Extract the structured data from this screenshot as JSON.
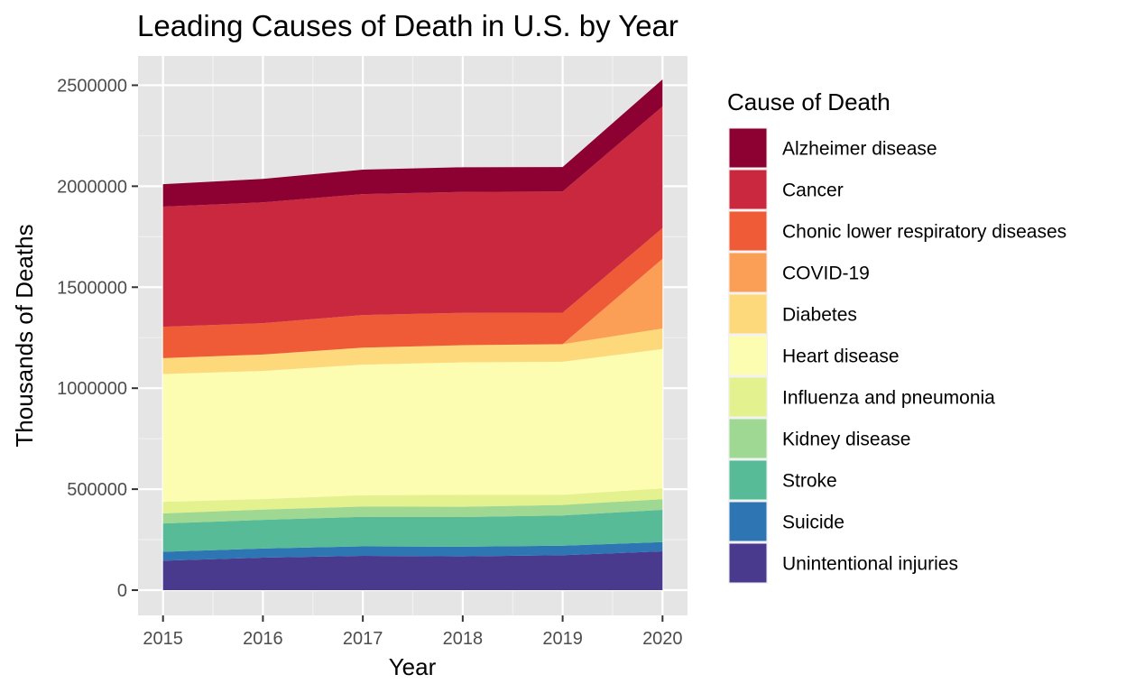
{
  "chart_data": {
    "type": "area",
    "stacked": true,
    "title": "Leading Causes of Death in U.S. by Year",
    "xlabel": "Year",
    "ylabel": "Thousands of Deaths",
    "x": [
      2015,
      2016,
      2017,
      2018,
      2019,
      2020
    ],
    "xlim": [
      2014.75,
      2020.25
    ],
    "ylim": [
      -125000,
      2645000
    ],
    "yticks": [
      0,
      500000,
      1000000,
      1500000,
      2000000,
      2500000
    ],
    "ytick_labels": [
      "0",
      "500000",
      "1000000",
      "1500000",
      "2000000",
      "2500000"
    ],
    "xtick_labels": [
      "2015",
      "2016",
      "2017",
      "2018",
      "2019",
      "2020"
    ],
    "grid": true,
    "panel_background": "#e5e5e5",
    "grid_color": "#ffffff",
    "legend": {
      "title": "Cause of Death",
      "position": "right"
    },
    "series": [
      {
        "name": "Unintentional injuries",
        "color": "#4a3a8e",
        "values": [
          146000,
          161000,
          170000,
          167000,
          173000,
          192000
        ]
      },
      {
        "name": "Suicide",
        "color": "#2e75b3",
        "values": [
          44000,
          45000,
          47000,
          48000,
          47000,
          46000
        ]
      },
      {
        "name": "Stroke",
        "color": "#57bb98",
        "values": [
          140000,
          142000,
          146000,
          147000,
          150000,
          160000
        ]
      },
      {
        "name": "Kidney disease",
        "color": "#9fd893",
        "values": [
          50000,
          51000,
          51000,
          51000,
          52000,
          52000
        ]
      },
      {
        "name": "Influenza and pneumonia",
        "color": "#e3f28e",
        "values": [
          57000,
          52000,
          56000,
          59000,
          50000,
          54000
        ]
      },
      {
        "name": "Heart disease",
        "color": "#fdfdb2",
        "values": [
          633000,
          635000,
          647000,
          656000,
          659000,
          690000
        ]
      },
      {
        "name": "Diabetes",
        "color": "#fdd97c",
        "values": [
          79000,
          81000,
          84000,
          85000,
          87000,
          102000
        ]
      },
      {
        "name": "COVID-19",
        "color": "#fc9f56",
        "values": [
          0,
          0,
          0,
          0,
          0,
          345000
        ]
      },
      {
        "name": "Chonic lower respiratory diseases",
        "color": "#ef5a37",
        "values": [
          155000,
          155000,
          161000,
          160000,
          156000,
          152000
        ]
      },
      {
        "name": "Cancer",
        "color": "#c9283e",
        "values": [
          595000,
          598000,
          599000,
          599000,
          600000,
          602000
        ]
      },
      {
        "name": "Alzheimer disease",
        "color": "#8c0032",
        "values": [
          111000,
          116000,
          121000,
          122000,
          121000,
          134000
        ]
      }
    ]
  }
}
